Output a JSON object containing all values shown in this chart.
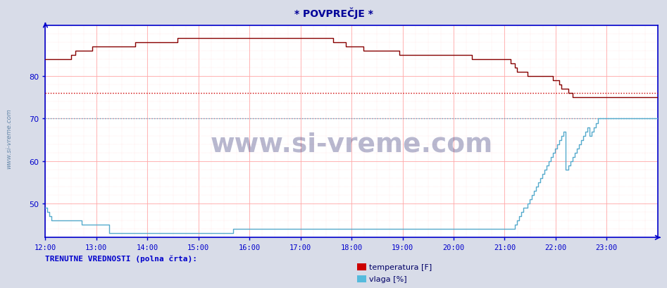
{
  "title": "* POVPREČJE *",
  "title_color": "#000099",
  "bg_color": "#d8dce8",
  "plot_bg_color": "#ffffff",
  "axis_color": "#0000cc",
  "grid_major_color": "#ffaaaa",
  "grid_minor_color": "#ffcccc",
  "xmin": 0,
  "xmax": 287,
  "ymin": 42,
  "ymax": 92,
  "yticks": [
    50,
    60,
    70,
    80
  ],
  "xtick_labels": [
    "12:00",
    "13:00",
    "14:00",
    "15:00",
    "16:00",
    "17:00",
    "18:00",
    "19:00",
    "20:00",
    "21:00",
    "22:00",
    "23:00"
  ],
  "watermark": "www.si-vreme.com",
  "watermark_color": "#000055",
  "side_label": "www.si-vreme.com",
  "bottom_label": "TRENUTNE VREDNOSTI (polna črta):",
  "legend": [
    {
      "label": "temperatura [F]",
      "color": "#cc0000"
    },
    {
      "label": "vlaga [%]",
      "color": "#55bbdd"
    }
  ],
  "temp_avg_line": 76.0,
  "temp_avg_color": "#cc0000",
  "vlaga_avg_line": 70.0,
  "vlaga_avg_color": "#55aacc",
  "temp_color": "#880000",
  "vlaga_color": "#55aacc",
  "temp_data": [
    84,
    84,
    84,
    84,
    84,
    84,
    84,
    84,
    84,
    84,
    84,
    84,
    85,
    85,
    86,
    86,
    86,
    86,
    86,
    86,
    86,
    86,
    87,
    87,
    87,
    87,
    87,
    87,
    87,
    87,
    87,
    87,
    87,
    87,
    87,
    87,
    87,
    87,
    87,
    87,
    87,
    87,
    88,
    88,
    88,
    88,
    88,
    88,
    88,
    88,
    88,
    88,
    88,
    88,
    88,
    88,
    88,
    88,
    88,
    88,
    88,
    88,
    89,
    89,
    89,
    89,
    89,
    89,
    89,
    89,
    89,
    89,
    89,
    89,
    89,
    89,
    89,
    89,
    89,
    89,
    89,
    89,
    89,
    89,
    89,
    89,
    89,
    89,
    89,
    89,
    89,
    89,
    89,
    89,
    89,
    89,
    89,
    89,
    89,
    89,
    89,
    89,
    89,
    89,
    89,
    89,
    89,
    89,
    89,
    89,
    89,
    89,
    89,
    89,
    89,
    89,
    89,
    89,
    89,
    89,
    89,
    89,
    89,
    89,
    89,
    89,
    89,
    89,
    89,
    89,
    89,
    89,
    89,
    89,
    89,
    88,
    88,
    88,
    88,
    88,
    88,
    87,
    87,
    87,
    87,
    87,
    87,
    87,
    87,
    86,
    86,
    86,
    86,
    86,
    86,
    86,
    86,
    86,
    86,
    86,
    86,
    86,
    86,
    86,
    86,
    86,
    85,
    85,
    85,
    85,
    85,
    85,
    85,
    85,
    85,
    85,
    85,
    85,
    85,
    85,
    85,
    85,
    85,
    85,
    85,
    85,
    85,
    85,
    85,
    85,
    85,
    85,
    85,
    85,
    85,
    85,
    85,
    85,
    85,
    85,
    84,
    84,
    84,
    84,
    84,
    84,
    84,
    84,
    84,
    84,
    84,
    84,
    84,
    84,
    84,
    84,
    84,
    84,
    83,
    83,
    82,
    81,
    81,
    81,
    81,
    81,
    80,
    80,
    80,
    80,
    80,
    80,
    80,
    80,
    80,
    80,
    80,
    80,
    79,
    79,
    79,
    78,
    77,
    77,
    77,
    76,
    76,
    75,
    75,
    75,
    75,
    75,
    75,
    75,
    75,
    75,
    75,
    75,
    75,
    75,
    75,
    75,
    75,
    75,
    75,
    75,
    75,
    75,
    75,
    75,
    75,
    75,
    75,
    75,
    75,
    75,
    75,
    75,
    75,
    75,
    75,
    75,
    75,
    75,
    75,
    75,
    75,
    75
  ],
  "vlaga_data": [
    49,
    48,
    47,
    46,
    46,
    46,
    46,
    46,
    46,
    46,
    46,
    46,
    46,
    46,
    46,
    46,
    46,
    45,
    45,
    45,
    45,
    45,
    45,
    45,
    45,
    45,
    45,
    45,
    45,
    45,
    43,
    43,
    43,
    43,
    43,
    43,
    43,
    43,
    43,
    43,
    43,
    43,
    43,
    43,
    43,
    43,
    43,
    43,
    43,
    43,
    43,
    43,
    43,
    43,
    43,
    43,
    43,
    43,
    43,
    43,
    43,
    43,
    43,
    43,
    43,
    43,
    43,
    43,
    43,
    43,
    43,
    43,
    43,
    43,
    43,
    43,
    43,
    43,
    43,
    43,
    43,
    43,
    43,
    43,
    43,
    43,
    43,
    43,
    44,
    44,
    44,
    44,
    44,
    44,
    44,
    44,
    44,
    44,
    44,
    44,
    44,
    44,
    44,
    44,
    44,
    44,
    44,
    44,
    44,
    44,
    44,
    44,
    44,
    44,
    44,
    44,
    44,
    44,
    44,
    44,
    44,
    44,
    44,
    44,
    44,
    44,
    44,
    44,
    44,
    44,
    44,
    44,
    44,
    44,
    44,
    44,
    44,
    44,
    44,
    44,
    44,
    44,
    44,
    44,
    44,
    44,
    44,
    44,
    44,
    44,
    44,
    44,
    44,
    44,
    44,
    44,
    44,
    44,
    44,
    44,
    44,
    44,
    44,
    44,
    44,
    44,
    44,
    44,
    44,
    44,
    44,
    44,
    44,
    44,
    44,
    44,
    44,
    44,
    44,
    44,
    44,
    44,
    44,
    44,
    44,
    44,
    44,
    44,
    44,
    44,
    44,
    44,
    44,
    44,
    44,
    44,
    44,
    44,
    44,
    44,
    44,
    44,
    44,
    44,
    44,
    44,
    44,
    44,
    44,
    44,
    44,
    44,
    44,
    44,
    44,
    44,
    44,
    44,
    44,
    44,
    45,
    46,
    47,
    48,
    49,
    49,
    50,
    51,
    52,
    53,
    54,
    55,
    56,
    57,
    58,
    59,
    60,
    61,
    62,
    63,
    64,
    65,
    66,
    67,
    58,
    59,
    60,
    61,
    62,
    63,
    64,
    65,
    66,
    67,
    68,
    66,
    67,
    68,
    69,
    70,
    70,
    70,
    70,
    70,
    70,
    70,
    70,
    70,
    70,
    70,
    70,
    70,
    70,
    70,
    70,
    70,
    70,
    70,
    70,
    70,
    70,
    70,
    70,
    70,
    70,
    70,
    70,
    70
  ]
}
